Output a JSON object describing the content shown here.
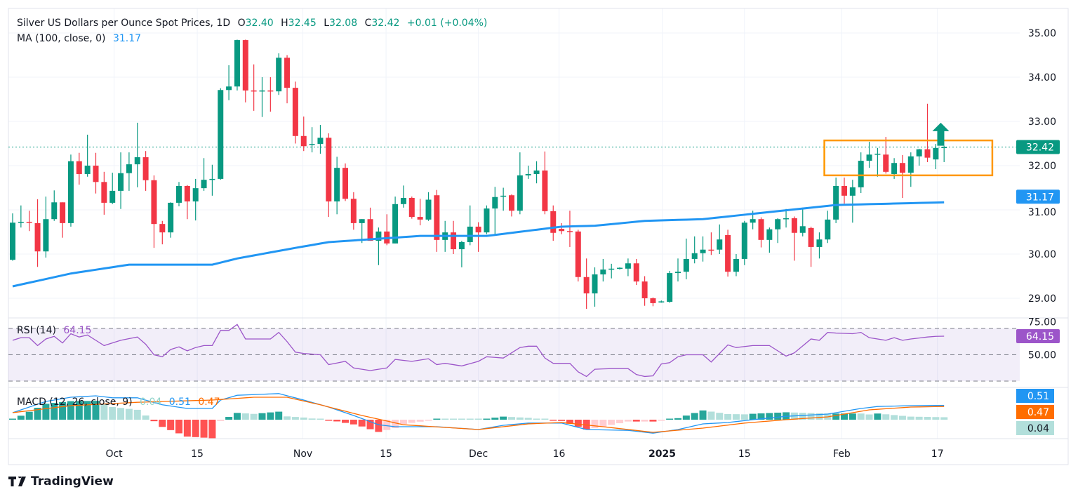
{
  "header": {
    "symbol": "Silver US Dollars per Ounce Spot Prices, 1D",
    "o_label": "O",
    "o": "32.40",
    "h_label": "H",
    "h": "32.45",
    "l_label": "L",
    "l": "32.08",
    "c_label": "C",
    "c": "32.42",
    "change": "+0.01 (+0.04%)",
    "ma_label": "MA (100, close, 0)",
    "ma_value": "31.17"
  },
  "rsi_legend": {
    "label": "RSI (14)",
    "value": "64.15"
  },
  "macd_legend": {
    "label": "MACD (12, 26, close, 9)",
    "hist": "0.04",
    "macd": "0.51",
    "signal": "0.47"
  },
  "brand": "TradingView",
  "colors": {
    "up": "#089981",
    "down": "#f23645",
    "ma": "#2196f3",
    "rsi": "#9c55c9",
    "macd": "#2196f3",
    "signal": "#ff6d00",
    "box": "#ff9800"
  },
  "chart_data": {
    "type": "candlestick",
    "title": "Silver US Dollars per Ounce Spot Prices, 1D",
    "ylim": [
      28.5,
      35.3
    ],
    "price_ticks": [
      "35.00",
      "34.00",
      "33.00",
      "32.00",
      "31.00",
      "30.00",
      "29.00"
    ],
    "last_price": "32.42",
    "ma_last": "31.17",
    "time_ticks": [
      {
        "bar": 12.2,
        "label": "Oct"
      },
      {
        "bar": 22.2,
        "label": "15"
      },
      {
        "bar": 34.9,
        "label": "Nov"
      },
      {
        "bar": 44.9,
        "label": "15"
      },
      {
        "bar": 56.0,
        "label": "Dec"
      },
      {
        "bar": 65.7,
        "label": "16"
      },
      {
        "bar": 78.1,
        "label": "2025",
        "bold": true
      },
      {
        "bar": 88.0,
        "label": "15"
      },
      {
        "bar": 99.7,
        "label": "Feb"
      },
      {
        "bar": 111.2,
        "label": "17"
      }
    ],
    "ohlc": [
      [
        29.87,
        30.92,
        29.85,
        30.71
      ],
      [
        30.71,
        31.1,
        30.6,
        30.73
      ],
      [
        30.73,
        30.98,
        30.52,
        30.71
      ],
      [
        30.7,
        31.24,
        29.71,
        30.06
      ],
      [
        30.06,
        31.3,
        29.92,
        30.79
      ],
      [
        30.79,
        31.44,
        30.75,
        31.17
      ],
      [
        31.17,
        31.17,
        30.37,
        30.7
      ],
      [
        30.7,
        32.25,
        30.62,
        32.1
      ],
      [
        32.1,
        32.29,
        31.57,
        31.81
      ],
      [
        31.81,
        32.7,
        31.75,
        32.0
      ],
      [
        32.0,
        32.29,
        31.37,
        31.63
      ],
      [
        31.63,
        31.86,
        30.89,
        31.16
      ],
      [
        31.16,
        31.84,
        31.13,
        31.43
      ],
      [
        31.43,
        32.3,
        31.02,
        31.83
      ],
      [
        31.83,
        32.3,
        31.43,
        32.03
      ],
      [
        32.03,
        32.97,
        31.51,
        32.19
      ],
      [
        32.19,
        32.33,
        31.43,
        31.67
      ],
      [
        31.67,
        31.78,
        30.14,
        30.68
      ],
      [
        30.68,
        30.75,
        30.22,
        30.49
      ],
      [
        30.49,
        31.17,
        30.37,
        31.16
      ],
      [
        31.16,
        31.63,
        31.08,
        31.54
      ],
      [
        31.54,
        31.56,
        30.79,
        31.19
      ],
      [
        31.19,
        31.7,
        30.76,
        31.49
      ],
      [
        31.49,
        32.17,
        31.43,
        31.68
      ],
      [
        31.68,
        32.02,
        31.32,
        31.7
      ],
      [
        31.7,
        33.75,
        31.68,
        33.71
      ],
      [
        33.71,
        34.27,
        33.48,
        33.79
      ],
      [
        33.79,
        34.85,
        33.7,
        34.84
      ],
      [
        34.84,
        34.85,
        33.43,
        33.7
      ],
      [
        33.7,
        34.29,
        33.24,
        33.68
      ],
      [
        33.68,
        34.0,
        33.1,
        33.7
      ],
      [
        33.7,
        34.0,
        33.22,
        33.68
      ],
      [
        33.68,
        34.54,
        33.6,
        34.44
      ],
      [
        34.44,
        34.5,
        33.41,
        33.76
      ],
      [
        33.76,
        33.9,
        32.5,
        32.67
      ],
      [
        32.67,
        33.11,
        32.33,
        32.44
      ],
      [
        32.48,
        32.87,
        32.3,
        32.49
      ],
      [
        32.49,
        32.92,
        32.27,
        32.63
      ],
      [
        32.63,
        32.73,
        30.84,
        31.19
      ],
      [
        31.19,
        32.2,
        30.9,
        31.95
      ],
      [
        31.95,
        32.05,
        31.2,
        31.25
      ],
      [
        31.25,
        31.4,
        30.55,
        30.7
      ],
      [
        30.7,
        30.79,
        30.25,
        30.79
      ],
      [
        30.79,
        31.05,
        30.3,
        30.3
      ],
      [
        30.3,
        30.6,
        29.75,
        30.51
      ],
      [
        30.51,
        30.9,
        30.2,
        30.24
      ],
      [
        30.24,
        31.3,
        30.24,
        31.13
      ],
      [
        31.13,
        31.55,
        31.05,
        31.27
      ],
      [
        31.27,
        31.3,
        30.8,
        30.84
      ],
      [
        30.84,
        31.25,
        30.65,
        30.78
      ],
      [
        30.78,
        31.4,
        30.75,
        31.23
      ],
      [
        31.33,
        31.45,
        30.05,
        30.32
      ],
      [
        30.32,
        30.75,
        30.05,
        30.49
      ],
      [
        30.49,
        30.75,
        30.0,
        30.11
      ],
      [
        30.11,
        30.3,
        29.7,
        30.27
      ],
      [
        30.27,
        31.1,
        30.2,
        30.62
      ],
      [
        30.62,
        30.72,
        30.05,
        30.49
      ],
      [
        30.49,
        31.1,
        30.45,
        31.03
      ],
      [
        31.03,
        31.52,
        30.45,
        31.29
      ],
      [
        31.3,
        31.5,
        30.98,
        31.32
      ],
      [
        31.33,
        31.35,
        30.85,
        30.98
      ],
      [
        30.98,
        32.3,
        30.9,
        31.78
      ],
      [
        31.78,
        32.0,
        31.7,
        31.81
      ],
      [
        31.81,
        32.1,
        31.6,
        31.89
      ],
      [
        31.89,
        32.32,
        30.9,
        30.97
      ],
      [
        30.97,
        31.1,
        30.3,
        30.48
      ],
      [
        30.57,
        30.7,
        30.45,
        30.52
      ],
      [
        30.52,
        30.98,
        30.16,
        30.5
      ],
      [
        30.51,
        30.55,
        29.38,
        29.48
      ],
      [
        29.48,
        29.9,
        28.76,
        29.11
      ],
      [
        29.11,
        29.7,
        28.81,
        29.54
      ],
      [
        29.54,
        29.89,
        29.38,
        29.65
      ],
      [
        29.65,
        29.78,
        29.45,
        29.67
      ],
      [
        29.67,
        29.7,
        29.65,
        29.69
      ],
      [
        29.67,
        29.9,
        29.5,
        29.79
      ],
      [
        29.79,
        29.89,
        29.3,
        29.38
      ],
      [
        29.38,
        29.5,
        28.83,
        29.0
      ],
      [
        29.0,
        29.02,
        28.82,
        28.89
      ],
      [
        28.92,
        28.95,
        28.9,
        28.93
      ],
      [
        28.92,
        29.62,
        28.9,
        29.57
      ],
      [
        29.57,
        29.9,
        29.38,
        29.6
      ],
      [
        29.6,
        30.35,
        29.43,
        29.89
      ],
      [
        29.89,
        30.4,
        29.79,
        30.02
      ],
      [
        30.02,
        30.4,
        29.83,
        30.1
      ],
      [
        30.1,
        30.49,
        29.98,
        30.08
      ],
      [
        30.1,
        30.67,
        30.0,
        30.33
      ],
      [
        30.43,
        30.55,
        29.49,
        29.6
      ],
      [
        29.6,
        30.0,
        29.5,
        29.89
      ],
      [
        29.89,
        30.75,
        29.75,
        30.71
      ],
      [
        30.71,
        30.98,
        30.56,
        30.79
      ],
      [
        30.79,
        30.83,
        30.15,
        30.32
      ],
      [
        30.32,
        30.6,
        30.03,
        30.56
      ],
      [
        30.56,
        30.81,
        30.25,
        30.79
      ],
      [
        30.8,
        31.02,
        30.6,
        30.81
      ],
      [
        30.81,
        30.85,
        29.85,
        30.48
      ],
      [
        30.48,
        31.05,
        30.4,
        30.63
      ],
      [
        30.59,
        30.62,
        29.71,
        30.16
      ],
      [
        30.16,
        30.49,
        29.9,
        30.33
      ],
      [
        30.33,
        30.98,
        30.25,
        30.78
      ],
      [
        30.78,
        31.73,
        30.7,
        31.54
      ],
      [
        31.54,
        31.73,
        31.14,
        31.32
      ],
      [
        31.32,
        31.68,
        30.71,
        31.51
      ],
      [
        31.51,
        32.3,
        31.38,
        32.11
      ],
      [
        32.11,
        32.54,
        31.95,
        32.25
      ],
      [
        32.25,
        32.4,
        31.75,
        32.27
      ],
      [
        32.25,
        32.65,
        31.82,
        31.86
      ],
      [
        31.81,
        32.17,
        31.7,
        32.06
      ],
      [
        32.06,
        32.24,
        31.27,
        31.84
      ],
      [
        31.84,
        32.3,
        31.52,
        32.21
      ],
      [
        32.21,
        32.38,
        32.0,
        32.37
      ],
      [
        32.37,
        33.4,
        32.08,
        32.18
      ],
      [
        32.14,
        32.49,
        31.92,
        32.4
      ],
      [
        32.4,
        32.45,
        32.08,
        32.42
      ]
    ],
    "ma100": [
      [
        0,
        29.27
      ],
      [
        7,
        29.56
      ],
      [
        14,
        29.76
      ],
      [
        24,
        29.76
      ],
      [
        27,
        29.9
      ],
      [
        34,
        30.14
      ],
      [
        38,
        30.27
      ],
      [
        49,
        30.41
      ],
      [
        57,
        30.41
      ],
      [
        66,
        30.62
      ],
      [
        70,
        30.64
      ],
      [
        76,
        30.75
      ],
      [
        83,
        30.79
      ],
      [
        91,
        30.95
      ],
      [
        99,
        31.11
      ],
      [
        112,
        31.17
      ]
    ],
    "rsi": {
      "ylim": [
        25,
        78
      ],
      "levels": [
        70,
        50,
        30
      ],
      "ticks": [
        "75.00",
        "50.00"
      ],
      "values": [
        [
          0,
          61
        ],
        [
          1,
          63
        ],
        [
          2,
          63
        ],
        [
          3,
          57
        ],
        [
          4,
          62
        ],
        [
          5,
          64
        ],
        [
          6,
          59
        ],
        [
          7,
          66
        ],
        [
          8,
          63.5
        ],
        [
          9,
          65
        ],
        [
          11,
          57
        ],
        [
          12,
          59
        ],
        [
          13,
          61
        ],
        [
          15,
          63.5
        ],
        [
          16,
          58
        ],
        [
          17,
          50
        ],
        [
          18,
          48.5
        ],
        [
          19,
          54
        ],
        [
          20,
          56
        ],
        [
          21,
          53
        ],
        [
          22,
          55.5
        ],
        [
          23,
          57
        ],
        [
          24,
          57
        ],
        [
          25,
          68.5
        ],
        [
          26,
          68.5
        ],
        [
          27,
          73
        ],
        [
          28,
          62
        ],
        [
          31,
          62
        ],
        [
          32,
          67
        ],
        [
          33,
          60
        ],
        [
          34,
          52
        ],
        [
          35,
          51
        ],
        [
          37,
          50
        ],
        [
          38,
          42.5
        ],
        [
          40,
          45
        ],
        [
          41,
          40
        ],
        [
          43,
          38
        ],
        [
          45,
          40
        ],
        [
          46,
          46.5
        ],
        [
          48,
          45
        ],
        [
          50,
          47
        ],
        [
          51,
          42.5
        ],
        [
          52,
          43.5
        ],
        [
          54,
          41.5
        ],
        [
          56,
          45
        ],
        [
          57,
          48.5
        ],
        [
          59,
          47.5
        ],
        [
          61,
          55.5
        ],
        [
          62,
          56.5
        ],
        [
          63,
          56.5
        ],
        [
          64,
          47.5
        ],
        [
          65,
          43.5
        ],
        [
          67,
          43.5
        ],
        [
          68,
          37
        ],
        [
          69,
          33.5
        ],
        [
          70,
          39
        ],
        [
          72,
          39.5
        ],
        [
          74,
          39.5
        ],
        [
          75,
          35
        ],
        [
          76,
          33.5
        ],
        [
          77,
          34
        ],
        [
          78,
          43
        ],
        [
          79,
          44
        ],
        [
          80,
          48.5
        ],
        [
          81,
          50
        ],
        [
          83,
          50
        ],
        [
          84,
          44.5
        ],
        [
          86,
          57.5
        ],
        [
          87,
          55.5
        ],
        [
          89,
          57
        ],
        [
          91,
          57
        ],
        [
          92,
          53
        ],
        [
          93,
          49
        ],
        [
          94,
          51.5
        ],
        [
          96,
          62
        ],
        [
          97,
          61
        ],
        [
          98,
          67
        ],
        [
          99,
          66.5
        ],
        [
          101,
          66
        ],
        [
          102,
          67
        ],
        [
          103,
          63
        ],
        [
          104,
          62
        ],
        [
          105,
          61
        ],
        [
          106,
          63
        ],
        [
          107,
          61
        ],
        [
          108,
          62
        ],
        [
          110,
          63.5
        ],
        [
          111,
          64
        ],
        [
          112,
          64.15
        ]
      ]
    },
    "macd": {
      "ylim": [
        -0.7,
        1.1
      ],
      "macd": [
        [
          0,
          0.25
        ],
        [
          4,
          0.65
        ],
        [
          7,
          0.8
        ],
        [
          10,
          0.85
        ],
        [
          12,
          0.78
        ],
        [
          15,
          0.78
        ],
        [
          18,
          0.53
        ],
        [
          21,
          0.4
        ],
        [
          24,
          0.4
        ],
        [
          25,
          0.7
        ],
        [
          27,
          0.87
        ],
        [
          32,
          0.93
        ],
        [
          35,
          0.7
        ],
        [
          38,
          0.45
        ],
        [
          41,
          0.15
        ],
        [
          44,
          -0.18
        ],
        [
          46,
          -0.25
        ],
        [
          51,
          -0.25
        ],
        [
          56,
          -0.35
        ],
        [
          59,
          -0.2
        ],
        [
          62,
          -0.12
        ],
        [
          66,
          -0.12
        ],
        [
          69,
          -0.35
        ],
        [
          74,
          -0.38
        ],
        [
          77,
          -0.48
        ],
        [
          80,
          -0.35
        ],
        [
          83,
          -0.15
        ],
        [
          86,
          -0.1
        ],
        [
          89,
          0
        ],
        [
          93,
          0.12
        ],
        [
          98,
          0.2
        ],
        [
          102,
          0.4
        ],
        [
          104,
          0.47
        ],
        [
          108,
          0.5
        ],
        [
          112,
          0.51
        ]
      ],
      "signal": [
        [
          0,
          0.25
        ],
        [
          7,
          0.5
        ],
        [
          15,
          0.62
        ],
        [
          24,
          0.7
        ],
        [
          29,
          0.8
        ],
        [
          33,
          0.8
        ],
        [
          37,
          0.53
        ],
        [
          42,
          0.15
        ],
        [
          47,
          -0.18
        ],
        [
          56,
          -0.35
        ],
        [
          62,
          -0.15
        ],
        [
          66,
          -0.1
        ],
        [
          71,
          -0.25
        ],
        [
          77,
          -0.45
        ],
        [
          83,
          -0.3
        ],
        [
          88,
          -0.12
        ],
        [
          93,
          0
        ],
        [
          98,
          0.1
        ],
        [
          103,
          0.35
        ],
        [
          108,
          0.45
        ],
        [
          112,
          0.47
        ]
      ]
    },
    "annotations": {
      "box": {
        "bar_from": 97.6,
        "bar_to": 117.8,
        "price_low": 31.78,
        "price_high": 32.57
      },
      "arrow": {
        "bar": 111.6,
        "price_from": 32.45,
        "price_to": 32.97,
        "direction": "up"
      }
    }
  }
}
